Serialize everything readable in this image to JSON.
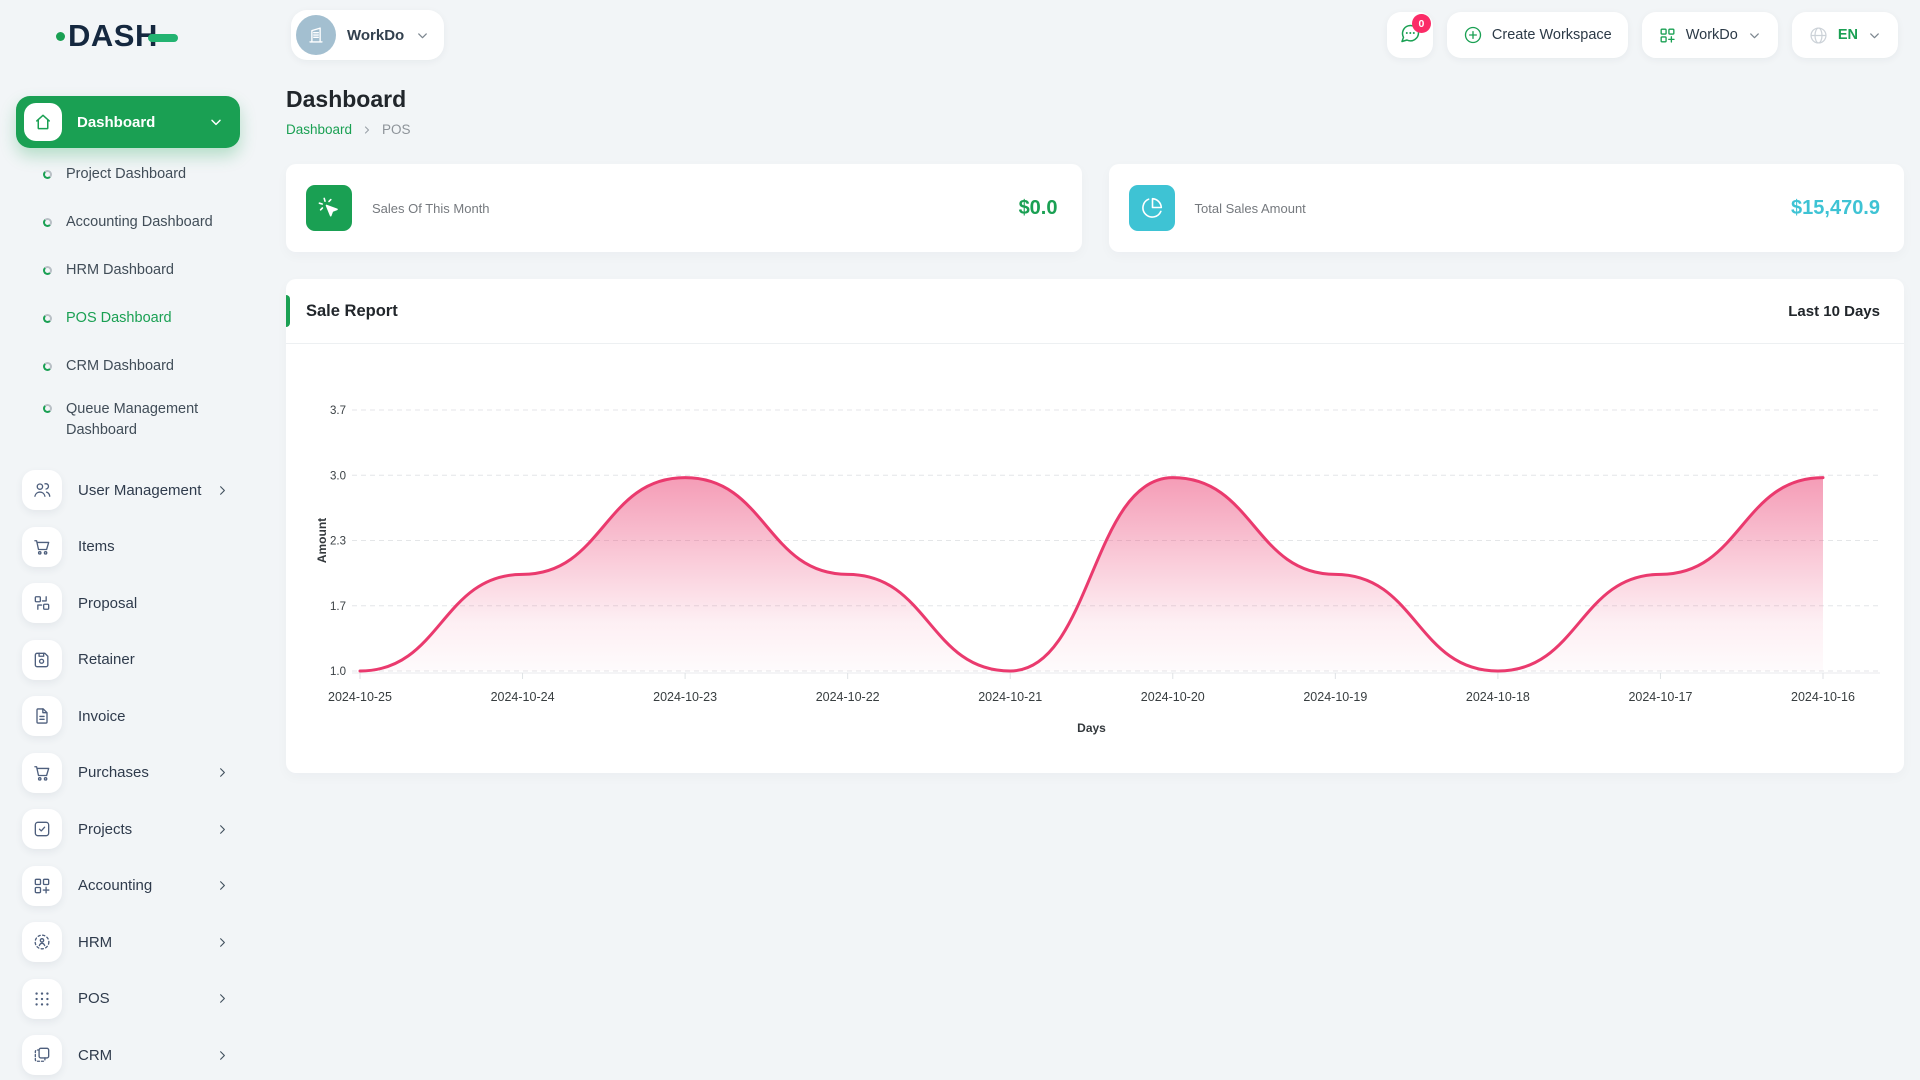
{
  "brand": {
    "name": "DASH"
  },
  "topbar": {
    "workspace_pill": {
      "label": "WorkDo"
    },
    "chat": {
      "badge": "0"
    },
    "create_workspace": {
      "label": "Create Workspace"
    },
    "workspace_switcher": {
      "label": "WorkDo"
    },
    "language": {
      "label": "EN"
    }
  },
  "sidebar": {
    "dashboard": {
      "label": "Dashboard"
    },
    "sub_items": [
      {
        "label": "Project Dashboard",
        "active": false
      },
      {
        "label": "Accounting Dashboard",
        "active": false
      },
      {
        "label": "HRM Dashboard",
        "active": false
      },
      {
        "label": "POS Dashboard",
        "active": true
      },
      {
        "label": "CRM Dashboard",
        "active": false
      },
      {
        "label": "Queue Management Dashboard",
        "active": false
      }
    ],
    "menu": [
      {
        "label": "User Management",
        "icon": "users",
        "chevron": true
      },
      {
        "label": "Items",
        "icon": "cart",
        "chevron": false
      },
      {
        "label": "Proposal",
        "icon": "proposal",
        "chevron": false
      },
      {
        "label": "Retainer",
        "icon": "retainer",
        "chevron": false
      },
      {
        "label": "Invoice",
        "icon": "invoice",
        "chevron": false
      },
      {
        "label": "Purchases",
        "icon": "cart",
        "chevron": true
      },
      {
        "label": "Projects",
        "icon": "check-square",
        "chevron": true
      },
      {
        "label": "Accounting",
        "icon": "grid-plus",
        "chevron": true
      },
      {
        "label": "HRM",
        "icon": "scan-user",
        "chevron": true
      },
      {
        "label": "POS",
        "icon": "dots-grid",
        "chevron": true
      },
      {
        "label": "CRM",
        "icon": "overlap-squares",
        "chevron": true
      }
    ]
  },
  "page": {
    "title": "Dashboard",
    "breadcrumb": {
      "root": "Dashboard",
      "current": "POS"
    }
  },
  "stats": [
    {
      "label": "Sales Of This Month",
      "value": "$0.0",
      "accent": "#1aa053",
      "icon": "pointer-click"
    },
    {
      "label": "Total Sales Amount",
      "value": "$15,470.9",
      "accent": "#3ec3d4",
      "icon": "pie-chart"
    }
  ],
  "chart_data": {
    "type": "area",
    "title": "Sale Report",
    "subtitle": "Last 10 Days",
    "x": [
      "2024-10-25",
      "2024-10-24",
      "2024-10-23",
      "2024-10-22",
      "2024-10-21",
      "2024-10-20",
      "2024-10-19",
      "2024-10-18",
      "2024-10-17",
      "2024-10-16"
    ],
    "series": [
      {
        "name": "Amount",
        "values": [
          1.0,
          2.0,
          3.0,
          2.0,
          1.0,
          3.0,
          2.0,
          1.0,
          2.0,
          3.0
        ]
      }
    ],
    "xlabel": "Days",
    "ylabel": "Amount",
    "ylim": [
      1.0,
      3.7
    ],
    "yticks": [
      1.0,
      1.7,
      2.3,
      3.0,
      3.7
    ],
    "grid": "dashed-horizontal",
    "legend": "none",
    "line_color": "#ea3a6e",
    "fill": "pink-gradient"
  }
}
